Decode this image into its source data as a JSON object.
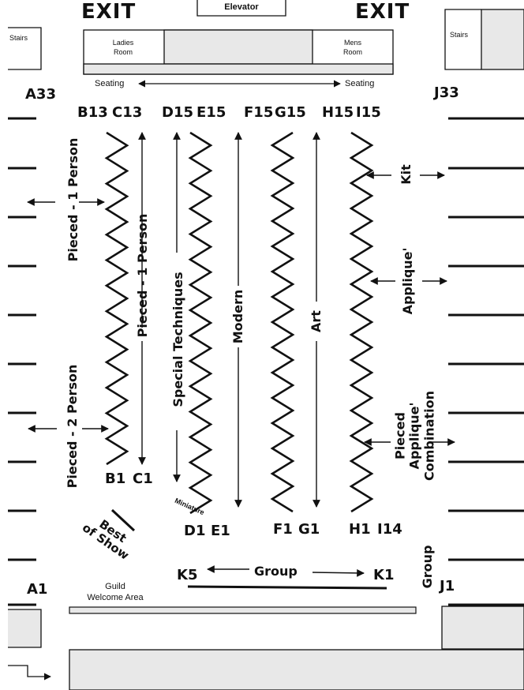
{
  "header": {
    "exit_left": "EXIT",
    "exit_right": "EXIT",
    "elevator": "Elevator",
    "stairs_left": "Stairs",
    "stairs_right": "Stairs",
    "ladies_room": "Ladies\nRoom",
    "mens_room": "Mens\nRoom",
    "seating_left": "Seating",
    "seating_right": "Seating"
  },
  "row_labels": {
    "A33": "A33",
    "A1": "A1",
    "B13": "B13",
    "B1": "B1",
    "C13": "C13",
    "C1": "C1",
    "D15": "D15",
    "D1": "D1",
    "E15": "E15",
    "E1": "E1",
    "F15": "F15",
    "F1": "F1",
    "G15": "G15",
    "G1": "G1",
    "H15": "H15",
    "H1": "H1",
    "I15": "I15",
    "I14": "I14",
    "J33": "J33",
    "J1": "J1",
    "K5": "K5",
    "K1": "K1"
  },
  "sections": {
    "pieced_1_person_left": "Pieced - 1 Person",
    "pieced_2_person": "Pieced - 2 Person",
    "pieced_1_person_center": "Pieced - 1 Person",
    "special_techniques": "Special Techniques",
    "miniature": "Miniature",
    "modern": "Modern",
    "art": "Art",
    "kit": "Kit",
    "applique": "Applique'",
    "pieced_applique": "Pieced Applique'\nCombination",
    "group_bottom": "Group",
    "group_side": "Group",
    "best_of_show": "Best\nof Show",
    "guild_welcome": "Guild\nWelcome Area"
  }
}
